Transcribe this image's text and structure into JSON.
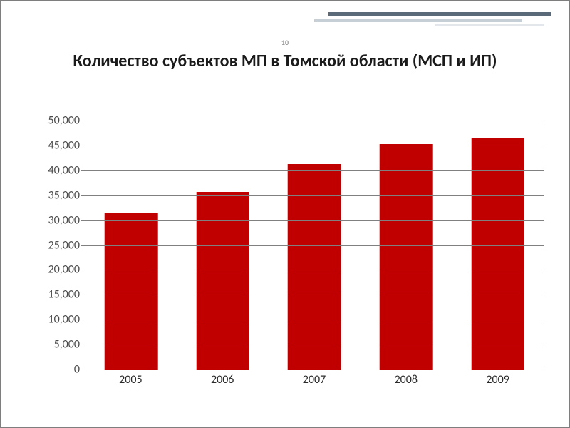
{
  "page_number": "10",
  "title": "Количество субъектов МП в Томской области (МСП и ИП)",
  "chart": {
    "type": "bar",
    "categories": [
      "2005",
      "2006",
      "2007",
      "2008",
      "2009"
    ],
    "values": [
      31500,
      35700,
      41200,
      45300,
      46600
    ],
    "ylim": [
      0,
      50000
    ],
    "ytick_step": 5000,
    "ytick_labels": [
      "0",
      "5,000",
      "10,000",
      "15,000",
      "20,000",
      "25,000",
      "30,000",
      "35,000",
      "40,000",
      "45,000",
      "50,000"
    ],
    "bar_color": "#c00000",
    "grid_color": "#808080",
    "axis_color": "#808080",
    "background_color": "#ffffff",
    "bar_width_ratio": 0.58,
    "ylabel_fontsize": 16,
    "xlabel_fontsize": 16,
    "title_fontsize": 24
  },
  "decor": {
    "bar_a_color": "#5a6a78",
    "bar_b_color": "#c7cfd6",
    "bar_c_color": "#e3e7eb"
  }
}
